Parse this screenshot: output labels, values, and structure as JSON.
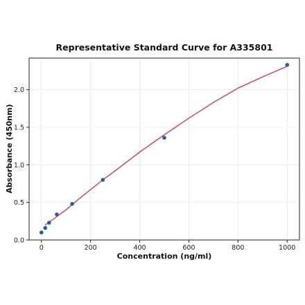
{
  "chart_data": {
    "type": "scatter",
    "title": "Representative Standard Curve for A335801",
    "xlabel": "Concentration (ng/ml)",
    "ylabel": "Absorbance (450nm)",
    "xlim": [
      -50,
      1050
    ],
    "ylim": [
      0,
      2.42
    ],
    "xticks": [
      0,
      200,
      400,
      600,
      800,
      1000
    ],
    "yticks": [
      0.0,
      0.5,
      1.0,
      1.5,
      2.0
    ],
    "xtick_labels": [
      "0",
      "200",
      "400",
      "600",
      "800",
      "1000"
    ],
    "ytick_labels": [
      "0.0",
      "0.5",
      "1.0",
      "1.5",
      "2.0"
    ],
    "grid": true,
    "series": [
      {
        "kind": "points",
        "x": [
          0,
          15.6,
          31.25,
          62.5,
          125,
          250,
          500,
          1000
        ],
        "y": [
          0.1,
          0.16,
          0.23,
          0.34,
          0.48,
          0.8,
          1.36,
          2.33
        ]
      },
      {
        "kind": "fit-curve",
        "x": [
          15,
          50,
          100,
          150,
          200,
          250,
          300,
          400,
          500,
          600,
          700,
          800,
          900,
          1000
        ],
        "y": [
          0.2,
          0.28,
          0.4,
          0.54,
          0.67,
          0.8,
          0.92,
          1.17,
          1.4,
          1.62,
          1.83,
          2.02,
          2.17,
          2.31
        ]
      }
    ],
    "colors": {
      "points": "#2b5d8f",
      "curve": "#c0505f"
    }
  }
}
